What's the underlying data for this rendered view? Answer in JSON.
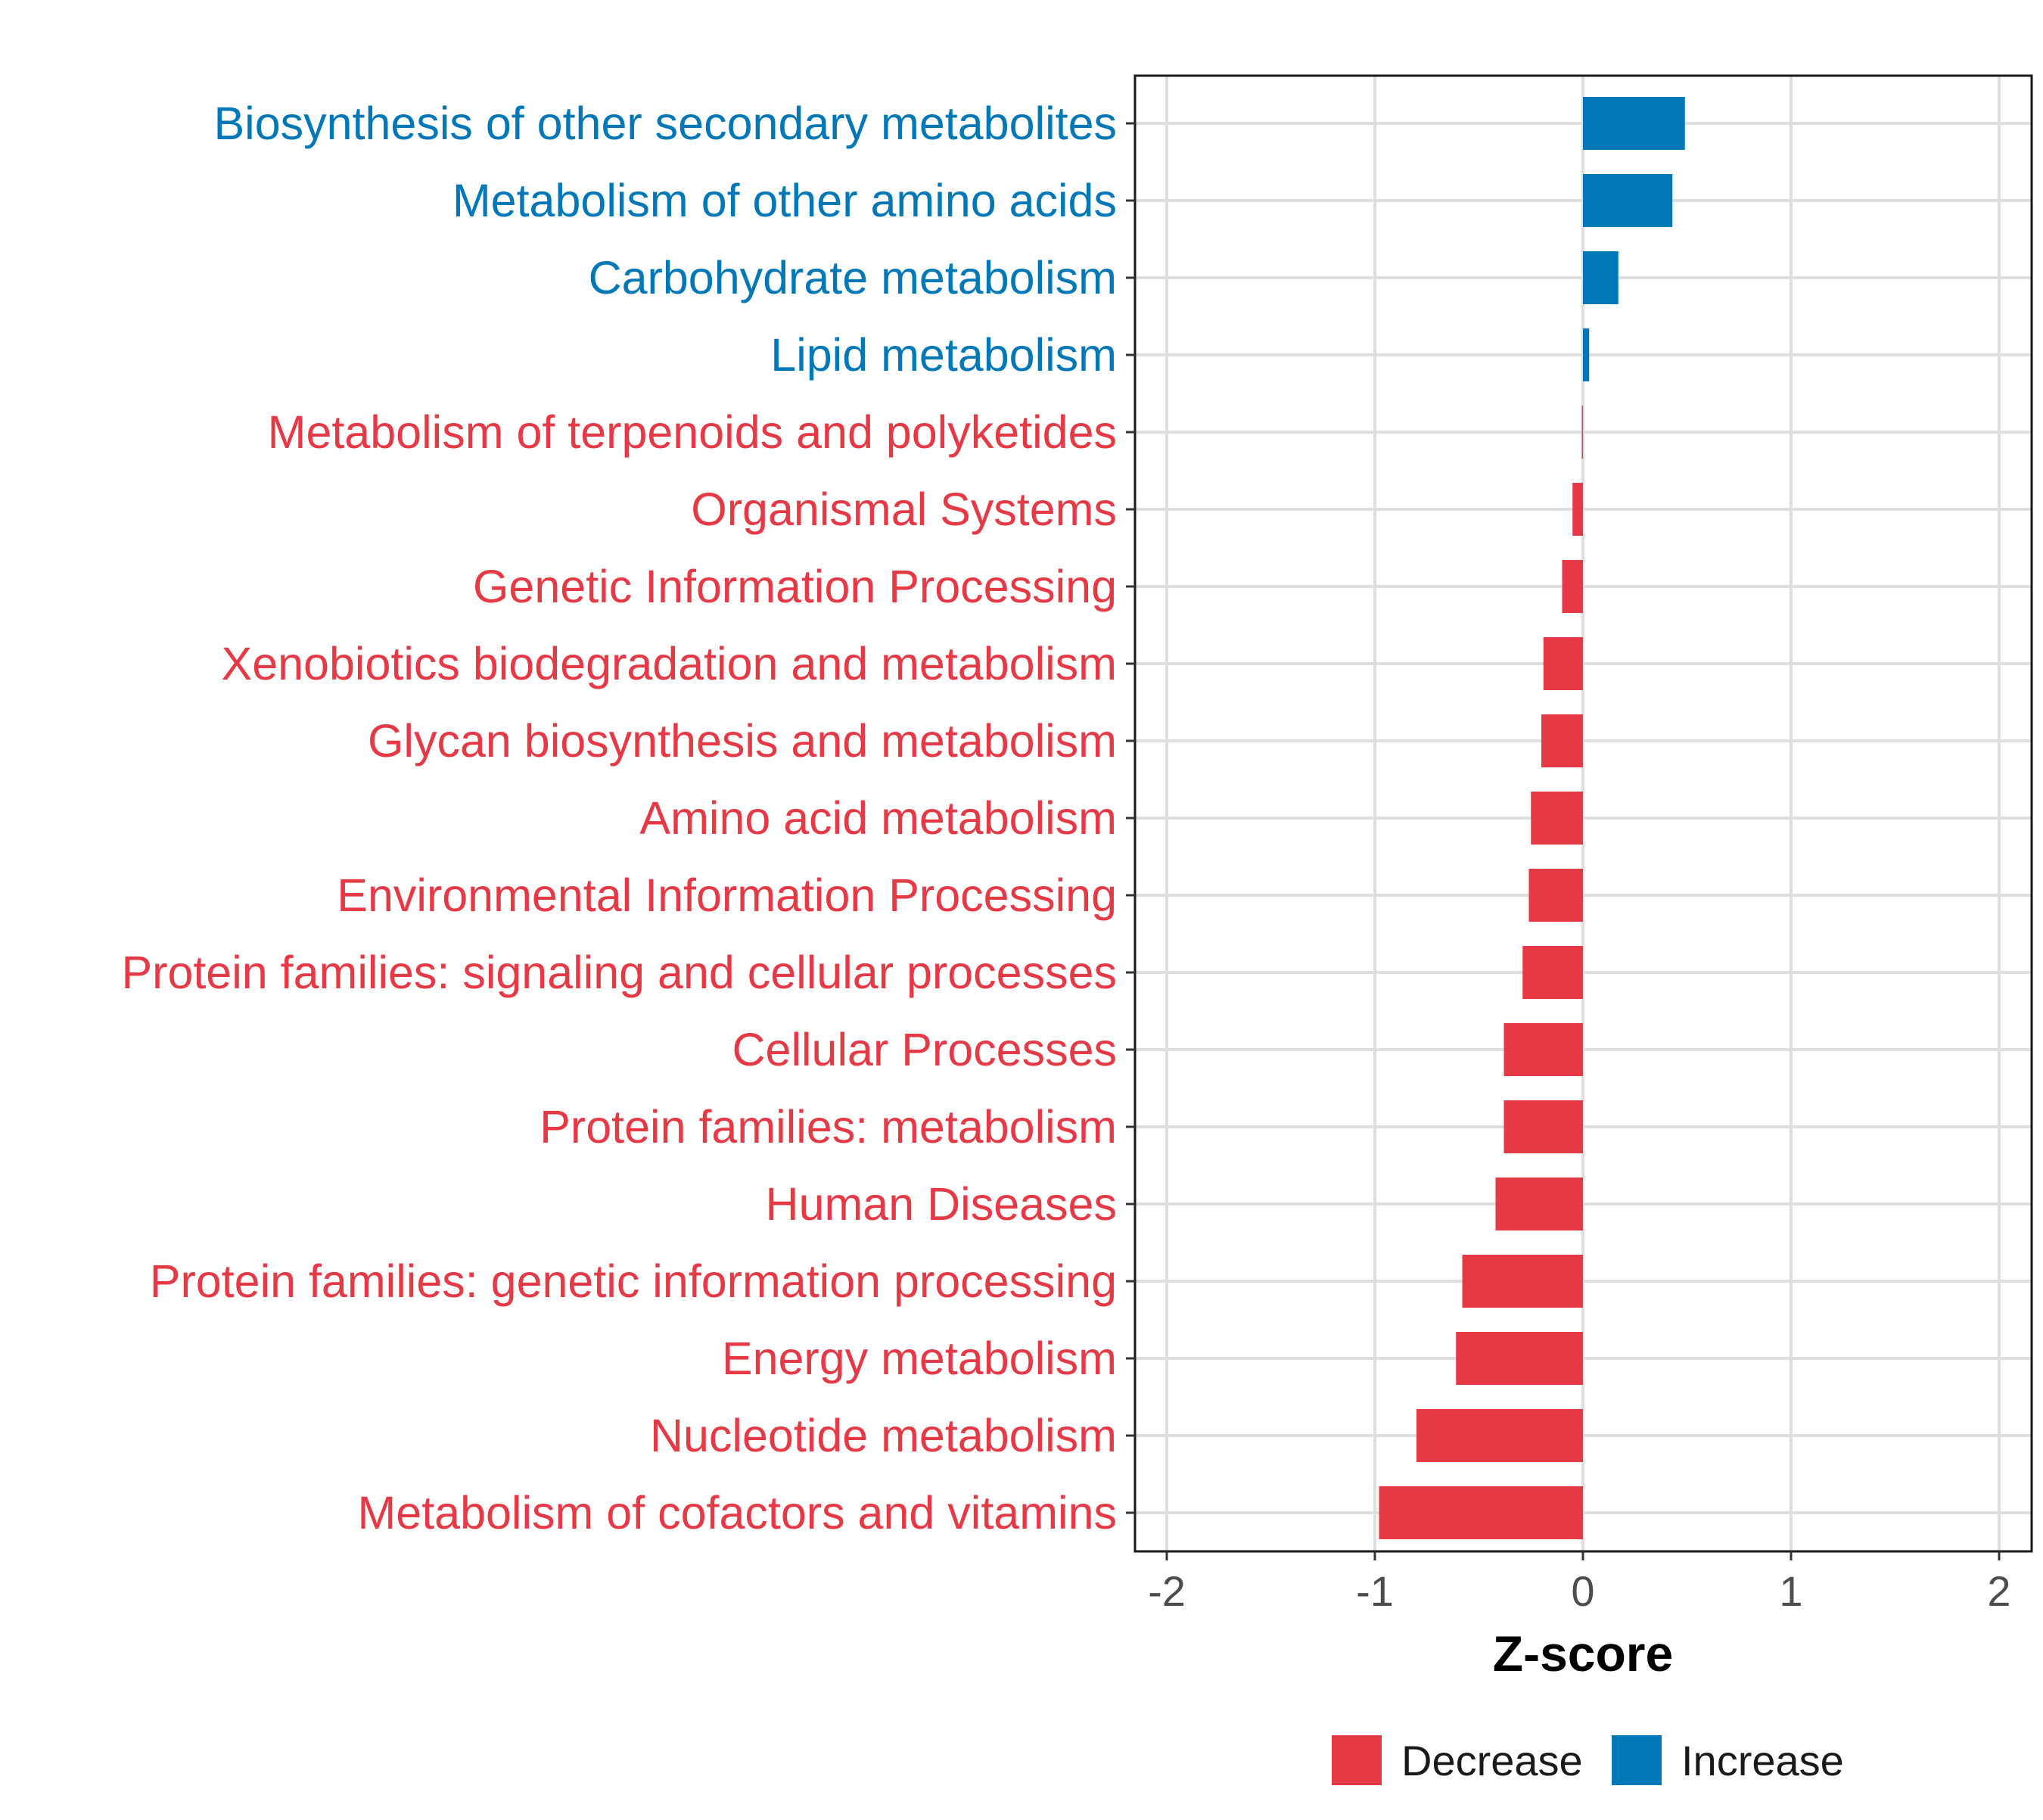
{
  "chart_data": {
    "type": "bar",
    "orientation": "horizontal",
    "title": "",
    "xlabel": "Z-score",
    "ylabel": "",
    "xlim": [
      -2.2,
      2.2
    ],
    "xticks": [
      -2,
      -1,
      0,
      1,
      2
    ],
    "xtick_labels": [
      "-2",
      "-1",
      "0",
      "1",
      "2"
    ],
    "grid": true,
    "legend_position": "bottom",
    "legend": [
      {
        "label": "Decrease",
        "color": "#E63946"
      },
      {
        "label": "Increase",
        "color": "#0077B6"
      }
    ],
    "categories": [
      "Biosynthesis of other secondary metabolites",
      "Metabolism of other amino acids",
      "Carbohydrate metabolism",
      "Lipid metabolism",
      "Metabolism of terpenoids and polyketides",
      "Organismal Systems",
      "Genetic Information Processing",
      "Xenobiotics biodegradation and metabolism",
      "Glycan biosynthesis and metabolism",
      "Amino acid metabolism",
      "Environmental Information Processing",
      "Protein families: signaling and cellular processes",
      "Cellular Processes",
      "Protein families: metabolism",
      "Human Diseases",
      "Protein families: genetic information processing",
      "Energy metabolism",
      "Nucleotide metabolism",
      "Metabolism of cofactors and vitamins"
    ],
    "values": [
      0.49,
      0.43,
      0.17,
      0.03,
      -0.005,
      -0.05,
      -0.1,
      -0.19,
      -0.2,
      -0.25,
      -0.26,
      -0.29,
      -0.38,
      -0.38,
      -0.42,
      -0.58,
      -0.61,
      -0.8,
      -0.98
    ],
    "groups": [
      "Increase",
      "Increase",
      "Increase",
      "Increase",
      "Decrease",
      "Decrease",
      "Decrease",
      "Decrease",
      "Decrease",
      "Decrease",
      "Decrease",
      "Decrease",
      "Decrease",
      "Decrease",
      "Decrease",
      "Decrease",
      "Decrease",
      "Decrease",
      "Decrease"
    ]
  }
}
